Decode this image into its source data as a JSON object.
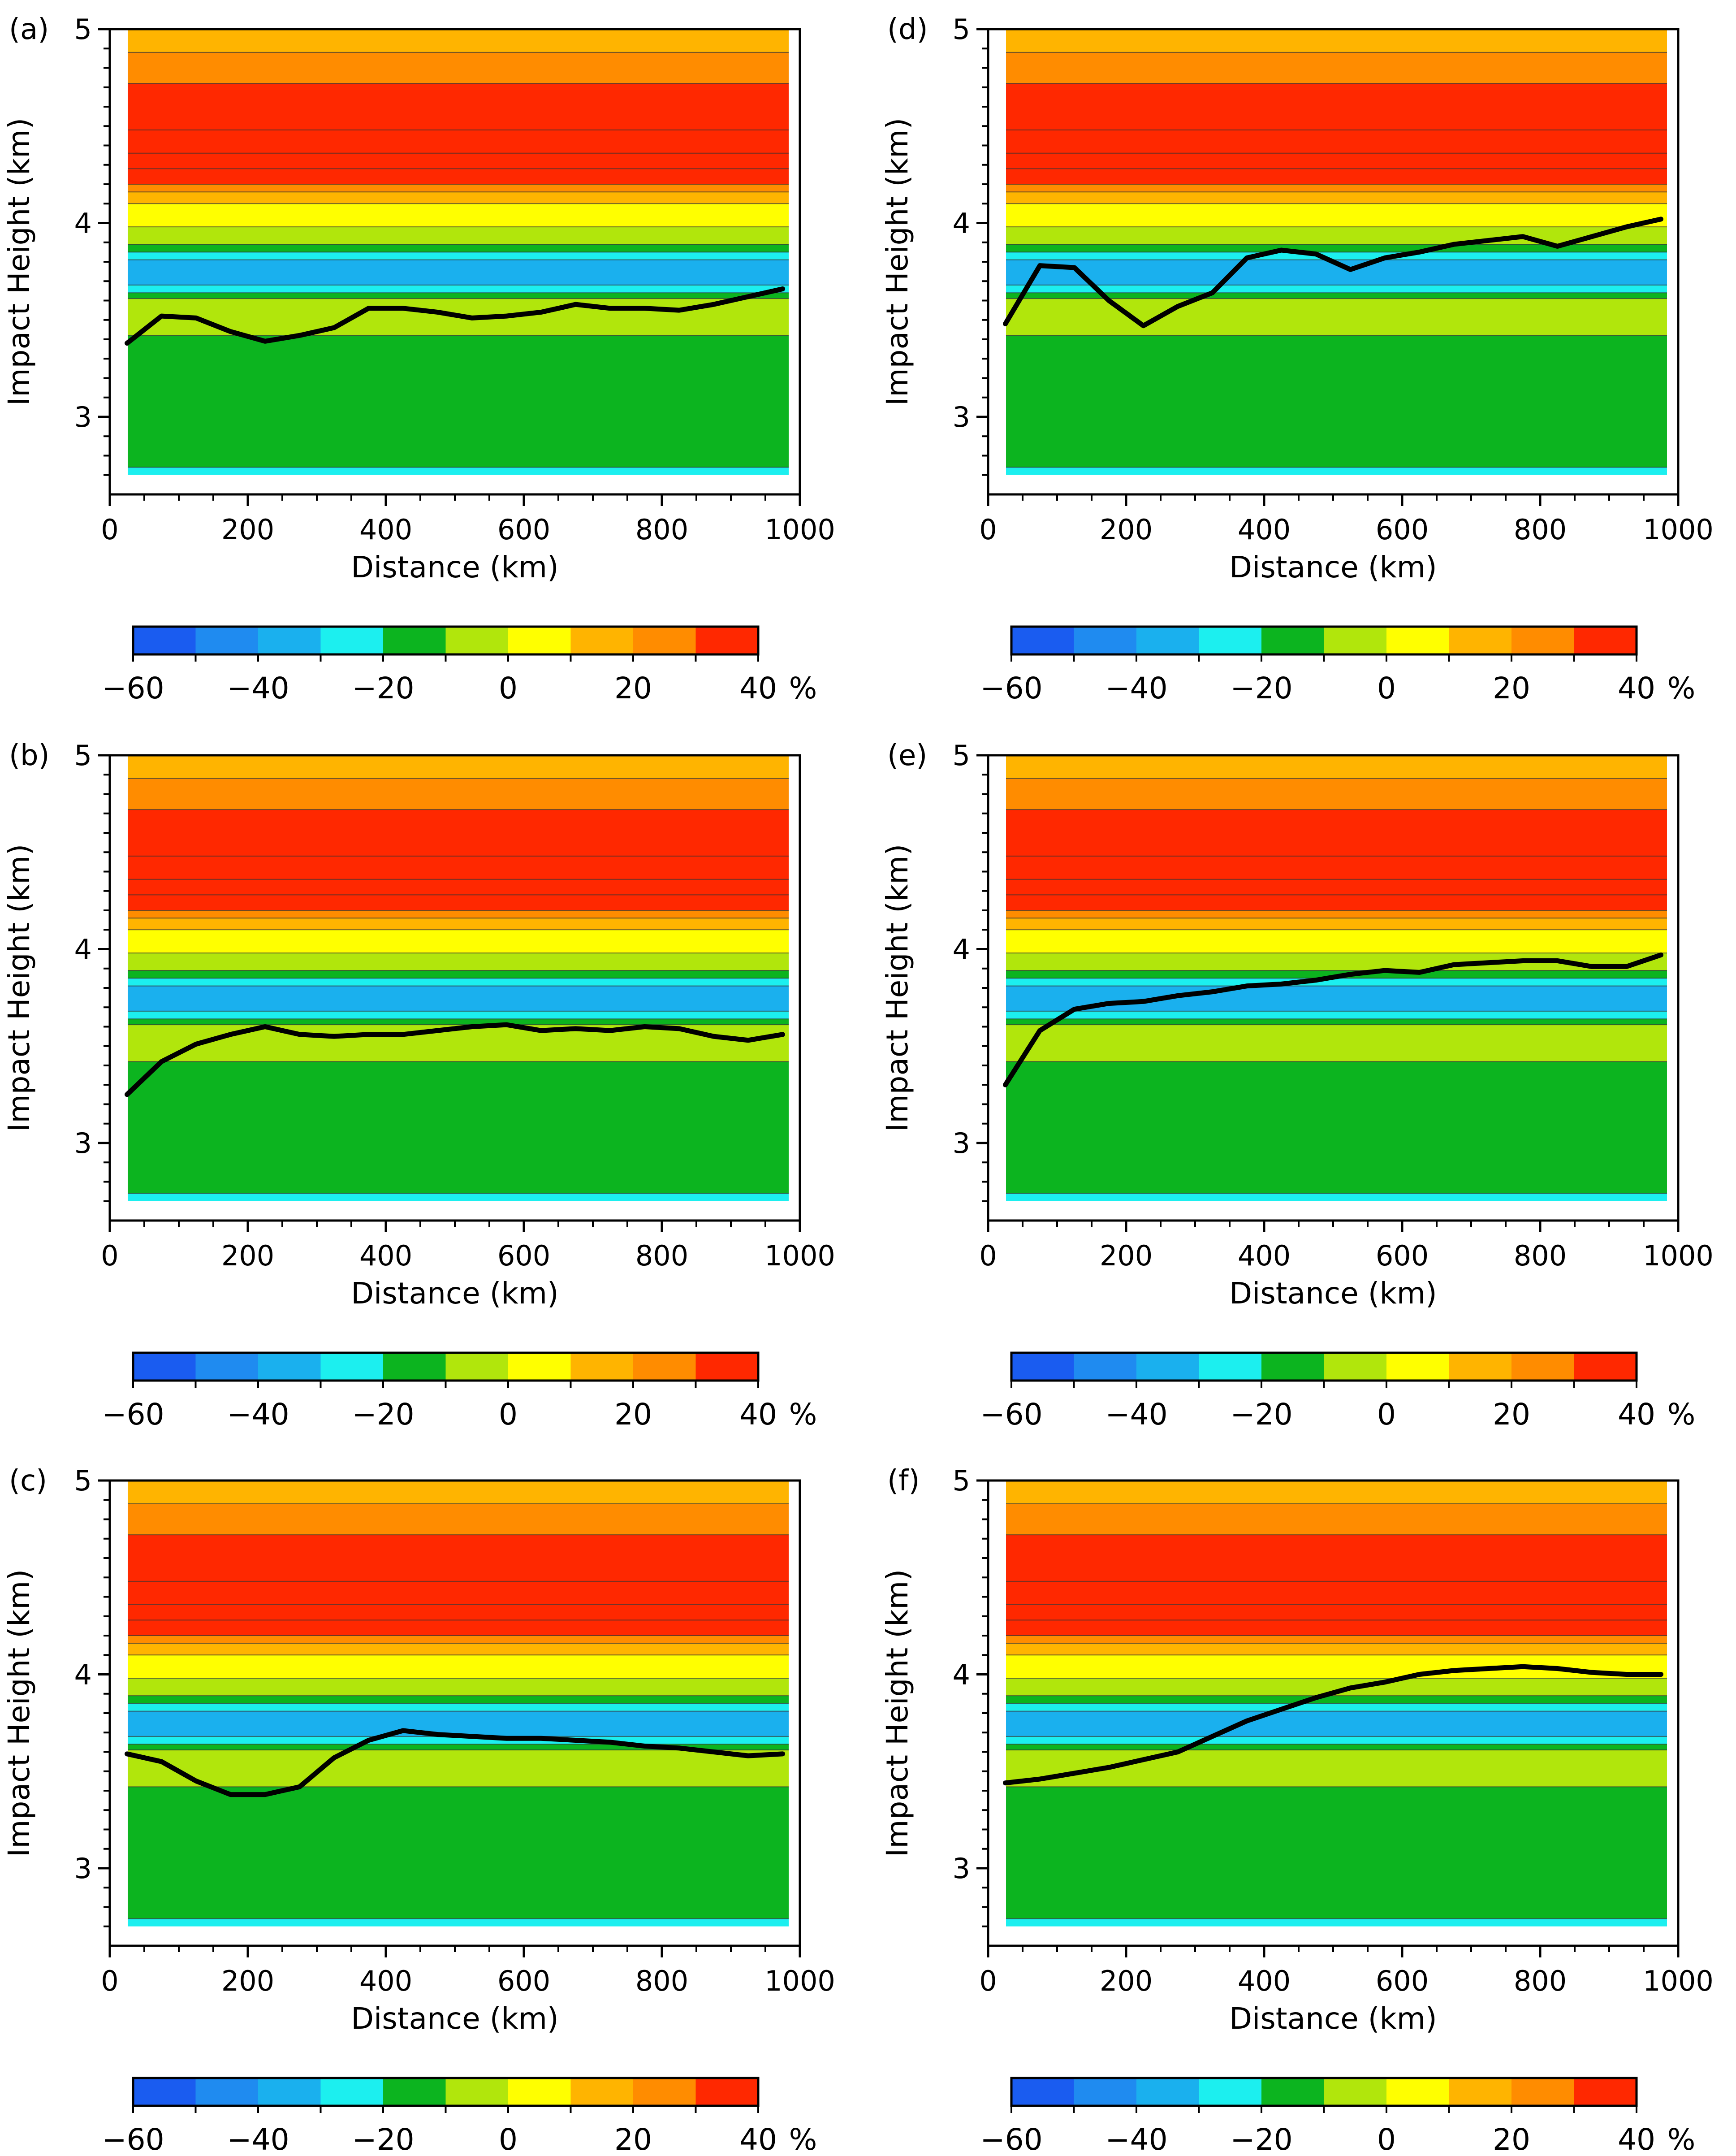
{
  "chart_data": [
    {
      "type": "contour",
      "panel": "(a)",
      "xlabel": "Distance (km)",
      "ylabel": "Impact Height (km)",
      "xlim": [
        0,
        1000
      ],
      "ylim": [
        2.6,
        5.0
      ],
      "xticks": [
        "0",
        "200",
        "400",
        "600",
        "800",
        "1000"
      ],
      "yticks": [
        "3",
        "4",
        "5"
      ],
      "line": {
        "x": [
          25,
          75,
          125,
          175,
          225,
          275,
          325,
          375,
          425,
          475,
          525,
          575,
          625,
          675,
          725,
          775,
          825,
          875,
          925,
          975
        ],
        "y": [
          3.38,
          3.52,
          3.51,
          3.44,
          3.39,
          3.42,
          3.46,
          3.56,
          3.56,
          3.54,
          3.51,
          3.52,
          3.54,
          3.58,
          3.56,
          3.56,
          3.55,
          3.58,
          3.62,
          3.66
        ]
      }
    },
    {
      "type": "contour",
      "panel": "(b)",
      "xlabel": "Distance (km)",
      "ylabel": "Impact Height (km)",
      "xlim": [
        0,
        1000
      ],
      "ylim": [
        2.6,
        5.0
      ],
      "xticks": [
        "0",
        "200",
        "400",
        "600",
        "800",
        "1000"
      ],
      "yticks": [
        "3",
        "4",
        "5"
      ],
      "line": {
        "x": [
          25,
          75,
          125,
          175,
          225,
          275,
          325,
          375,
          425,
          475,
          525,
          575,
          625,
          675,
          725,
          775,
          825,
          875,
          925,
          975
        ],
        "y": [
          3.25,
          3.42,
          3.51,
          3.56,
          3.6,
          3.56,
          3.55,
          3.56,
          3.56,
          3.58,
          3.6,
          3.61,
          3.58,
          3.59,
          3.58,
          3.6,
          3.59,
          3.55,
          3.53,
          3.56
        ]
      }
    },
    {
      "type": "contour",
      "panel": "(c)",
      "xlabel": "Distance (km)",
      "ylabel": "Impact Height (km)",
      "xlim": [
        0,
        1000
      ],
      "ylim": [
        2.6,
        5.0
      ],
      "xticks": [
        "0",
        "200",
        "400",
        "600",
        "800",
        "1000"
      ],
      "yticks": [
        "3",
        "4",
        "5"
      ],
      "line": {
        "x": [
          25,
          75,
          125,
          175,
          225,
          275,
          325,
          375,
          425,
          475,
          525,
          575,
          625,
          675,
          725,
          775,
          825,
          875,
          925,
          975
        ],
        "y": [
          3.59,
          3.55,
          3.45,
          3.38,
          3.38,
          3.42,
          3.57,
          3.66,
          3.71,
          3.69,
          3.68,
          3.67,
          3.67,
          3.66,
          3.65,
          3.63,
          3.62,
          3.6,
          3.58,
          3.59
        ]
      }
    },
    {
      "type": "contour",
      "panel": "(d)",
      "xlabel": "Distance (km)",
      "ylabel": "Impact Height (km)",
      "xlim": [
        0,
        1000
      ],
      "ylim": [
        2.6,
        5.0
      ],
      "xticks": [
        "0",
        "200",
        "400",
        "600",
        "800",
        "1000"
      ],
      "yticks": [
        "3",
        "4",
        "5"
      ],
      "line": {
        "x": [
          25,
          75,
          125,
          175,
          225,
          275,
          325,
          375,
          425,
          475,
          525,
          575,
          625,
          675,
          725,
          775,
          825,
          875,
          925,
          975
        ],
        "y": [
          3.48,
          3.78,
          3.77,
          3.6,
          3.47,
          3.57,
          3.64,
          3.82,
          3.86,
          3.84,
          3.76,
          3.82,
          3.85,
          3.89,
          3.91,
          3.93,
          3.88,
          3.93,
          3.98,
          4.02
        ]
      }
    },
    {
      "type": "contour",
      "panel": "(e)",
      "xlabel": "Distance (km)",
      "ylabel": "Impact Height (km)",
      "xlim": [
        0,
        1000
      ],
      "ylim": [
        2.6,
        5.0
      ],
      "xticks": [
        "0",
        "200",
        "400",
        "600",
        "800",
        "1000"
      ],
      "yticks": [
        "3",
        "4",
        "5"
      ],
      "line": {
        "x": [
          25,
          75,
          125,
          175,
          225,
          275,
          325,
          375,
          425,
          475,
          525,
          575,
          625,
          675,
          725,
          775,
          825,
          875,
          925,
          975
        ],
        "y": [
          3.3,
          3.58,
          3.69,
          3.72,
          3.73,
          3.76,
          3.78,
          3.81,
          3.82,
          3.84,
          3.87,
          3.89,
          3.88,
          3.92,
          3.93,
          3.94,
          3.94,
          3.91,
          3.91,
          3.97
        ]
      }
    },
    {
      "type": "contour",
      "panel": "(f)",
      "xlabel": "Distance (km)",
      "ylabel": "Impact Height (km)",
      "xlim": [
        0,
        1000
      ],
      "ylim": [
        2.6,
        5.0
      ],
      "xticks": [
        "0",
        "200",
        "400",
        "600",
        "800",
        "1000"
      ],
      "yticks": [
        "3",
        "4",
        "5"
      ],
      "line": {
        "x": [
          25,
          75,
          125,
          175,
          225,
          275,
          325,
          375,
          425,
          475,
          525,
          575,
          625,
          675,
          725,
          775,
          825,
          875,
          925,
          975
        ],
        "y": [
          3.44,
          3.46,
          3.49,
          3.52,
          3.56,
          3.6,
          3.68,
          3.76,
          3.82,
          3.88,
          3.93,
          3.96,
          4.0,
          4.02,
          4.03,
          4.04,
          4.03,
          4.01,
          4.0,
          4.0
        ]
      }
    }
  ],
  "colorbar": {
    "levels": [
      -60,
      -50,
      -40,
      -30,
      -20,
      -10,
      0,
      10,
      20,
      30,
      40
    ],
    "colors": [
      "#1a5cf0",
      "#1f8bf0",
      "#1ab0ee",
      "#1cefef",
      "#0cb41f",
      "#b1e60c",
      "#ffff00",
      "#ffb400",
      "#ff8c00",
      "#ff2800"
    ],
    "tick_labels": [
      "−60",
      "−40",
      "−20",
      "0",
      "20",
      "40"
    ],
    "unit": "%"
  },
  "band_levels": [
    {
      "top": 5.0,
      "value": 10
    },
    {
      "top": 4.88,
      "value": 20
    },
    {
      "top": 4.72,
      "value": 30
    },
    {
      "top": 4.48,
      "value": 40
    },
    {
      "top": 4.36,
      "value": 30
    },
    {
      "top": 4.28,
      "value": 40
    },
    {
      "top": 4.2,
      "value": 20
    },
    {
      "top": 4.16,
      "value": 10
    },
    {
      "top": 4.1,
      "value": 0
    },
    {
      "top": 3.98,
      "value": -10
    },
    {
      "top": 3.89,
      "value": -20
    },
    {
      "top": 3.85,
      "value": -30
    },
    {
      "top": 3.81,
      "value": -40
    },
    {
      "top": 3.68,
      "value": -30
    },
    {
      "top": 3.64,
      "value": -20
    },
    {
      "top": 3.61,
      "value": -10
    },
    {
      "top": 3.42,
      "value": -20
    },
    {
      "top": 2.74,
      "value": -30
    }
  ]
}
